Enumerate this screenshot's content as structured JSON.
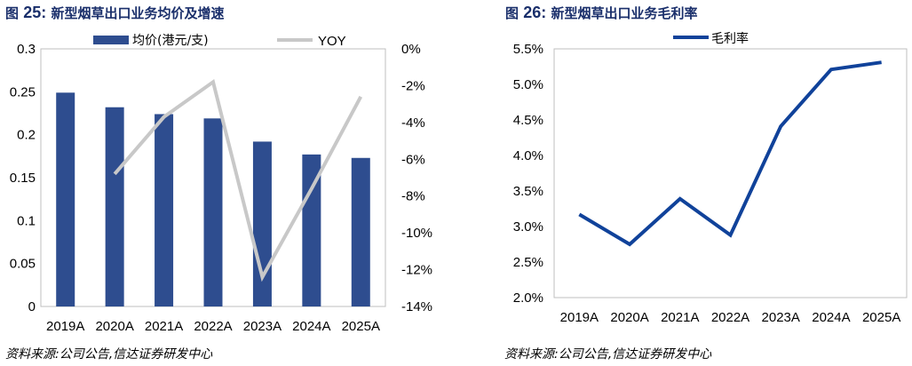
{
  "colors": {
    "bar": "#2e4d8f",
    "yoy_line": "#c8c8c8",
    "margin_line": "#10429a",
    "title": "#1a2f6b"
  },
  "left": {
    "title_prefix": "图",
    "title_number": "25:",
    "title_text": "新型烟草出口业务均价及增速",
    "source": "资料来源:公司公告,信达证券研发中心"
  },
  "right": {
    "title_prefix": "图",
    "title_number": "26:",
    "title_text": "新型烟草出口业务毛利率",
    "source": "资料来源:公司公告,信达证券研发中心"
  },
  "chart_data": [
    {
      "type": "bar+line",
      "title": "新型烟草出口业务均价及增速",
      "categories": [
        "2019A",
        "2020A",
        "2021A",
        "2022A",
        "2023A",
        "2024A",
        "2025A"
      ],
      "series": [
        {
          "name": "均价(港元/支)",
          "type": "bar",
          "axis": "left",
          "values": [
            0.249,
            0.232,
            0.224,
            0.219,
            0.192,
            0.177,
            0.173
          ]
        },
        {
          "name": "YOY",
          "type": "line",
          "axis": "right",
          "values": [
            null,
            -6.8,
            -3.7,
            -1.8,
            -12.4,
            -7.6,
            -2.6
          ]
        }
      ],
      "left_axis": {
        "min": 0,
        "max": 0.3,
        "ticks": [
          "0",
          "0.05",
          "0.1",
          "0.15",
          "0.2",
          "0.25",
          "0.3"
        ]
      },
      "right_axis": {
        "min": -14,
        "max": 0,
        "ticks": [
          "0%",
          "-2%",
          "-4%",
          "-6%",
          "-8%",
          "-10%",
          "-12%",
          "-14%"
        ]
      },
      "legend_position": "top"
    },
    {
      "type": "line",
      "title": "新型烟草出口业务毛利率",
      "categories": [
        "2019A",
        "2020A",
        "2021A",
        "2022A",
        "2023A",
        "2024A",
        "2025A"
      ],
      "series": [
        {
          "name": "毛利率",
          "values": [
            3.17,
            2.75,
            3.39,
            2.88,
            4.41,
            5.21,
            5.31
          ]
        }
      ],
      "y_axis": {
        "min": 2.0,
        "max": 5.5,
        "ticks": [
          "2.0%",
          "2.5%",
          "3.0%",
          "3.5%",
          "4.0%",
          "4.5%",
          "5.0%",
          "5.5%"
        ]
      },
      "legend_position": "top"
    }
  ]
}
